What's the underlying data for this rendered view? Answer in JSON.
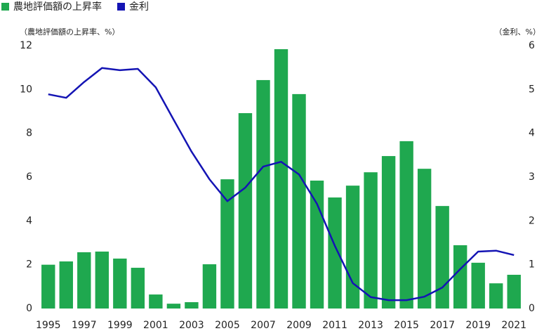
{
  "chart_data": {
    "type": "bar_line",
    "y_label": "（農地評価額の上昇率、%）",
    "y2_label": "（金利、%）",
    "categories": [
      "1995",
      null,
      "1997",
      null,
      "1999",
      null,
      "2001",
      null,
      "2003",
      null,
      "2005",
      null,
      "2007",
      null,
      "2009",
      null,
      "2011",
      null,
      "2013",
      null,
      "2015",
      null,
      "2017",
      null,
      "2019",
      null,
      "2021"
    ],
    "series": [
      {
        "name": "農地評価額の上昇率",
        "type": "bar",
        "color": "#1fa84f",
        "values": [
          2.0,
          2.15,
          2.57,
          2.6,
          2.28,
          1.86,
          0.64,
          0.22,
          0.29,
          2.02,
          5.9,
          8.92,
          10.43,
          11.84,
          9.79,
          5.84,
          5.07,
          5.61,
          6.22,
          6.96,
          7.64,
          6.38,
          4.68,
          2.89,
          2.09,
          1.15,
          1.54
        ]
      },
      {
        "name": "金利",
        "type": "line",
        "axis": "y2",
        "color": "#1414b4",
        "values": [
          4.89,
          4.81,
          5.17,
          5.49,
          5.44,
          5.47,
          5.05,
          4.31,
          3.58,
          2.95,
          2.45,
          2.76,
          3.24,
          3.35,
          3.06,
          2.39,
          1.43,
          0.58,
          0.26,
          0.19,
          0.19,
          0.27,
          0.48,
          0.9,
          1.3,
          1.32,
          1.22
        ]
      }
    ],
    "ylim": [
      0,
      12
    ],
    "yticks": [
      0,
      2,
      4,
      6,
      8,
      10,
      12
    ],
    "y2lim": [
      0,
      6
    ],
    "y2ticks": [
      0,
      1,
      2,
      3,
      4,
      5,
      6
    ],
    "legend": "top-left"
  }
}
